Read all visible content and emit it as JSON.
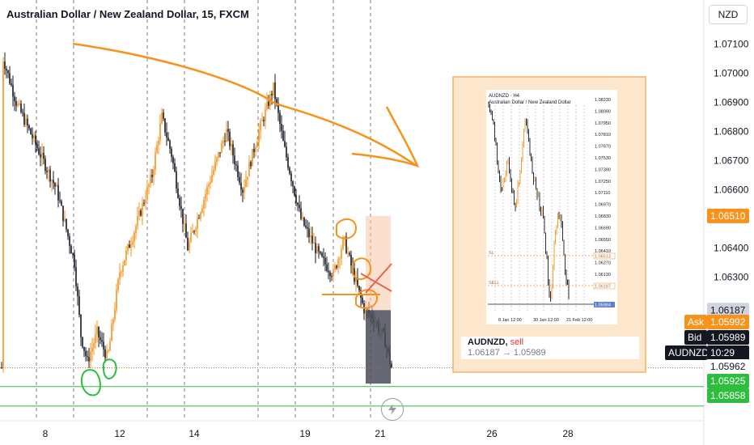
{
  "header": {
    "title": "Australian Dollar / New Zealand Dollar, 15, FXCM",
    "currency": "NZD"
  },
  "colors": {
    "bull": "#f7931a",
    "bear": "#131722",
    "annotation_orange": "#f7931a",
    "circle_green": "#2ebd3e",
    "red_cross": "#e06850",
    "ask": "#f7931a",
    "bid_bg": "#131722",
    "green_level": "#2ebd3e",
    "line_orange": "#f7931a"
  },
  "chart_data": {
    "type": "candlestick",
    "symbol": "AUDNZD",
    "timeframe": "15",
    "y_ticks": [
      "1.07100",
      "1.07000",
      "1.06900",
      "1.06800",
      "1.06700",
      "1.06600",
      "1.06400",
      "1.06300"
    ],
    "ylim": [
      1.0578,
      1.0722
    ],
    "x_ticks": [
      "8",
      "12",
      "14",
      "19",
      "21",
      "26",
      "28"
    ],
    "price_labels": {
      "entry": "1.06510",
      "level_1": "1.06187",
      "ask_label": "Ask",
      "ask": "1.05992",
      "bid_label": "Bid",
      "bid": "1.05989",
      "symbol_tag": "AUDNZD",
      "countdown": "10:29",
      "level_2": "1.05962",
      "level_3": "1.05925",
      "level_4": "1.05858"
    },
    "position": {
      "entry": 1.06187,
      "stop": 1.0651,
      "target": 1.05858,
      "side": "sell"
    },
    "pnl_note": {
      "symbol": "AUDNZD,",
      "side": "sell",
      "prices": "1.06187 → 1.05989"
    },
    "inset": {
      "title_line1": "AUDNZD · H4",
      "title_line2": "Australian Dollar / New Zealand Dollar",
      "y_ticks": [
        "1.08230",
        "1.08090",
        "1.07950",
        "1.07810",
        "1.07670",
        "1.07530",
        "1.07390",
        "1.07250",
        "1.07110",
        "1.06970",
        "1.06830",
        "1.06690",
        "1.06550",
        "1.06410",
        "1.06270",
        "1.06130"
      ],
      "sl_label": "SL",
      "sell_label": "SELL",
      "sl_price": "1.06513",
      "sell_price": "1.06187",
      "current_price": "1.05984",
      "x_ticks": [
        "8 Jan 12:00",
        "30 Jan 12:00",
        "21 Feb 12:00"
      ]
    }
  }
}
